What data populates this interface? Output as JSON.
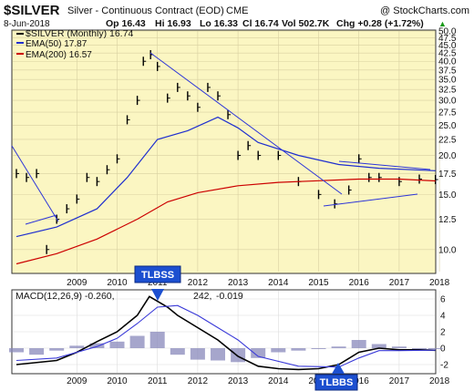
{
  "header": {
    "symbol": "$SILVER",
    "description": "Silver - Continuous Contract (EOD)",
    "exchange": "CME",
    "copyright": "@ StockCharts.com",
    "date": "8-Jun-2018",
    "ohlc": {
      "open": "Op 16.43",
      "high": "Hi 16.93",
      "low": "Lo 16.33",
      "close": "Cl 16.74",
      "volume": "Vol 502.7K",
      "change": "Chg +0.28 (+1.72%)"
    },
    "up_arrow": "▲"
  },
  "legend": {
    "price": "$SILVER (Monthly) 16.74",
    "ema50": "EMA(50) 17.87",
    "ema200": "EMA(200) 16.57"
  },
  "macd_label": {
    "main": "MACD(12,26,9) -0.260,",
    "signal_part": "242,",
    "hist_part": "-0.019"
  },
  "annotations": {
    "tlbss": "TLBSS",
    "tlbbs": "TLBBS"
  },
  "colors": {
    "plot_bg": "#fbf6c2",
    "price": "#000000",
    "ema50": "#1f2fcf",
    "ema200": "#cc0000",
    "trendline": "#2d35d8",
    "macd": "#000000",
    "signal": "#3a3ad8",
    "histogram": "#8888bb",
    "annotation_bg": "#1c4fd0"
  },
  "chart_data": [
    {
      "type": "line",
      "title": "$SILVER (Monthly) 16.74",
      "price_axis_scale": "log",
      "ylim": [
        8.5,
        50
      ],
      "y_ticks": [
        "10.0",
        "12.5",
        "15.0",
        "17.5",
        "20.0",
        "22.5",
        "25.0",
        "27.5",
        "30.0",
        "32.5",
        "35.0",
        "37.5",
        "40.0",
        "42.5",
        "45.0",
        "47.5",
        "50.0"
      ],
      "x_ticks": [
        "2009",
        "2010",
        "2011",
        "2012",
        "2013",
        "2014",
        "2015",
        "2016",
        "2017",
        "2018"
      ],
      "grid": true,
      "legend": "top-left",
      "series": [
        {
          "name": "$SILVER (Monthly) 16.74",
          "style": "bars",
          "x": [
            2008.0,
            2008.25,
            2008.5,
            2008.75,
            2009.0,
            2009.25,
            2009.5,
            2009.75,
            2010.0,
            2010.25,
            2010.5,
            2010.75,
            2011.0,
            2011.15,
            2011.33,
            2011.5,
            2011.75,
            2012.0,
            2012.25,
            2012.5,
            2012.75,
            2013.0,
            2013.25,
            2013.5,
            2013.75,
            2014.0,
            2014.5,
            2015.0,
            2015.5,
            2015.9,
            2016.25,
            2016.5,
            2016.75,
            2017.0,
            2017.5,
            2018.0,
            2018.4
          ],
          "values": [
            17.5,
            17.0,
            17.5,
            10.0,
            12.5,
            13.5,
            14.5,
            17.0,
            16.5,
            18.0,
            19.5,
            26.0,
            30.0,
            40.0,
            42.0,
            38.5,
            30.5,
            33.0,
            31.0,
            28.5,
            33.0,
            31.0,
            27.0,
            20.0,
            21.5,
            20.0,
            20.0,
            16.5,
            15.0,
            14.0,
            15.5,
            19.5,
            17.0,
            17.0,
            16.5,
            16.8,
            16.74
          ]
        },
        {
          "name": "EMA(50) 17.87",
          "x": [
            2008.0,
            2009.0,
            2010.0,
            2010.75,
            2011.5,
            2012.25,
            2013.0,
            2013.5,
            2014.0,
            2015.0,
            2016.0,
            2017.0,
            2018.4
          ],
          "values": [
            11.0,
            11.8,
            13.5,
            17.0,
            22.5,
            24.0,
            26.5,
            24.5,
            22.0,
            20.0,
            18.7,
            18.2,
            17.87
          ]
        },
        {
          "name": "EMA(200) 16.57",
          "x": [
            2008.0,
            2009.0,
            2010.0,
            2011.0,
            2011.75,
            2012.5,
            2013.5,
            2014.5,
            2015.5,
            2016.5,
            2017.5,
            2018.4
          ],
          "values": [
            9.0,
            9.7,
            10.8,
            12.5,
            14.2,
            15.2,
            16.0,
            16.4,
            16.6,
            16.8,
            16.8,
            16.57
          ]
        }
      ]
    },
    {
      "type": "line",
      "title": "MACD(12,26,9) -0.260, 242, -0.019",
      "ylim": [
        -3,
        7
      ],
      "y_ticks": [
        "6",
        "4",
        "2",
        "0",
        "-2"
      ],
      "x_ticks": [
        "2009",
        "2010",
        "2011",
        "2012",
        "2013",
        "2014",
        "2015",
        "2016",
        "2017",
        "2018"
      ],
      "grid": true,
      "series": [
        {
          "name": "MACD",
          "x": [
            2008.0,
            2009.0,
            2009.5,
            2010.0,
            2010.5,
            2011.0,
            2011.3,
            2011.75,
            2012.0,
            2012.5,
            2013.0,
            2013.5,
            2014.0,
            2014.5,
            2015.0,
            2015.5,
            2016.0,
            2016.5,
            2017.0,
            2017.5,
            2018.0,
            2018.4
          ],
          "values": [
            -2.0,
            -1.5,
            -0.5,
            0.8,
            2.0,
            4.0,
            6.3,
            5.0,
            4.0,
            2.5,
            1.0,
            -1.0,
            -2.2,
            -2.5,
            -2.6,
            -2.5,
            -2.0,
            -0.5,
            0.0,
            -0.2,
            -0.2,
            -0.26
          ]
        },
        {
          "name": "Signal",
          "x": [
            2008.0,
            2009.0,
            2010.0,
            2010.5,
            2011.0,
            2011.5,
            2012.0,
            2012.5,
            2013.0,
            2013.5,
            2014.0,
            2015.0,
            2016.0,
            2016.5,
            2017.0,
            2017.5,
            2018.4
          ],
          "values": [
            -1.5,
            -1.2,
            0.2,
            1.2,
            3.0,
            5.0,
            5.2,
            4.0,
            2.5,
            1.0,
            -1.0,
            -2.2,
            -2.3,
            -1.2,
            -0.3,
            -0.3,
            -0.24
          ]
        },
        {
          "name": "Histogram",
          "style": "histogram",
          "x": [
            2008.0,
            2008.5,
            2009.0,
            2009.5,
            2010.0,
            2010.5,
            2011.0,
            2011.5,
            2012.0,
            2012.5,
            2013.0,
            2013.5,
            2014.0,
            2014.5,
            2015.0,
            2015.5,
            2016.0,
            2016.5,
            2017.0,
            2017.5,
            2018.0,
            2018.4
          ],
          "values": [
            -0.5,
            -0.8,
            -0.3,
            0.3,
            0.6,
            0.8,
            1.5,
            2.0,
            -0.8,
            -1.4,
            -1.5,
            -1.7,
            -1.2,
            -0.5,
            -0.3,
            -0.1,
            0.2,
            1.0,
            0.5,
            0.2,
            -0.1,
            -0.019
          ]
        }
      ]
    }
  ]
}
